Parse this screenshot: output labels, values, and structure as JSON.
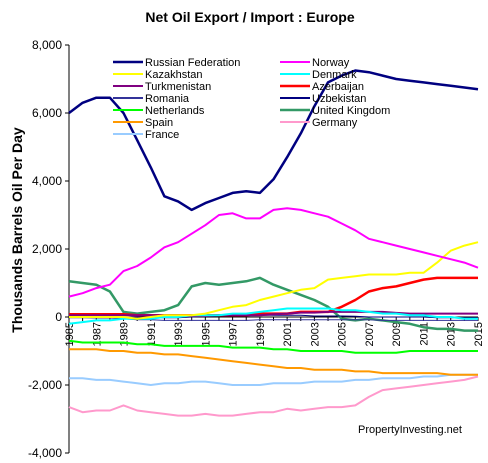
{
  "chart_data": {
    "type": "line",
    "title": "Net Oil Export / Import : Europe",
    "ylabel": "Thousands Barrels Oil Per Day",
    "xlabel": "",
    "ylim": [
      -4000,
      8000
    ],
    "yticks": [
      "8,000",
      "6,000",
      "4,000",
      "2,000",
      "0",
      "-2,000",
      "-4,000"
    ],
    "ytick_values": [
      8000,
      6000,
      4000,
      2000,
      0,
      -2000,
      -4000
    ],
    "x": [
      1985,
      1986,
      1987,
      1988,
      1989,
      1990,
      1991,
      1992,
      1993,
      1994,
      1995,
      1996,
      1997,
      1998,
      1999,
      2000,
      2001,
      2002,
      2003,
      2004,
      2005,
      2006,
      2007,
      2008,
      2009,
      2010,
      2011,
      2012,
      2013,
      2014,
      2015
    ],
    "xticks": [
      "1985",
      "1987",
      "1989",
      "1991",
      "1993",
      "1995",
      "1997",
      "1999",
      "2001",
      "2003",
      "2005",
      "2007",
      "2009",
      "2011",
      "2013",
      "2015"
    ],
    "grid": false,
    "legend_position": "top",
    "annotation": "PropertyInvesting.net",
    "series": [
      {
        "name": "Russian Federation",
        "color": "#000080",
        "width": 2.5,
        "values": [
          6000,
          6300,
          6450,
          6450,
          6000,
          5200,
          4400,
          3550,
          3400,
          3150,
          3350,
          3500,
          3650,
          3700,
          3650,
          4050,
          4700,
          5400,
          6200,
          6900,
          7100,
          7250,
          7200,
          7100,
          7000,
          6950,
          6900,
          6850,
          6800,
          6750,
          6700
        ]
      },
      {
        "name": "Norway",
        "color": "#ff00ff",
        "width": 2,
        "values": [
          600,
          700,
          850,
          950,
          1350,
          1500,
          1750,
          2050,
          2200,
          2450,
          2700,
          3000,
          3050,
          2900,
          2900,
          3150,
          3200,
          3150,
          3050,
          2950,
          2750,
          2550,
          2300,
          2200,
          2100,
          2000,
          1900,
          1800,
          1700,
          1600,
          1450
        ]
      },
      {
        "name": "Kazakhstan",
        "color": "#ffff00",
        "width": 2,
        "values": [
          0,
          0,
          0,
          0,
          0,
          -50,
          0,
          50,
          50,
          50,
          100,
          200,
          300,
          350,
          500,
          600,
          700,
          800,
          850,
          1100,
          1150,
          1200,
          1250,
          1250,
          1250,
          1300,
          1300,
          1600,
          1950,
          2100,
          2200
        ]
      },
      {
        "name": "Denmark",
        "color": "#00ffff",
        "width": 2,
        "values": [
          -200,
          -150,
          -100,
          -100,
          -50,
          -50,
          -50,
          0,
          0,
          50,
          50,
          50,
          100,
          100,
          150,
          200,
          250,
          250,
          250,
          250,
          200,
          200,
          150,
          100,
          100,
          50,
          50,
          0,
          0,
          -50,
          -50
        ]
      },
      {
        "name": "Turkmenistan",
        "color": "#800080",
        "width": 2,
        "values": [
          50,
          50,
          50,
          50,
          50,
          50,
          50,
          50,
          50,
          30,
          30,
          50,
          50,
          50,
          50,
          80,
          100,
          130,
          130,
          150,
          150,
          150,
          150,
          150,
          120,
          100,
          100,
          100,
          100,
          100,
          100
        ]
      },
      {
        "name": "Azerbaijan",
        "color": "#ff0000",
        "width": 2.5,
        "values": [
          80,
          80,
          80,
          80,
          80,
          50,
          50,
          50,
          50,
          50,
          50,
          50,
          50,
          50,
          100,
          100,
          100,
          150,
          150,
          150,
          300,
          500,
          750,
          850,
          900,
          1000,
          1100,
          1150,
          1150,
          1150,
          1150
        ]
      },
      {
        "name": "Romania",
        "color": "#333399",
        "width": 1,
        "values": [
          -20,
          -20,
          -30,
          -30,
          -50,
          -80,
          -80,
          -100,
          -100,
          -100,
          -100,
          -100,
          -100,
          -100,
          -80,
          -80,
          -80,
          -80,
          -80,
          -80,
          -80,
          -80,
          -80,
          -100,
          -100,
          -100,
          -100,
          -100,
          -100,
          -100,
          -100
        ]
      },
      {
        "name": "Uzbekistan",
        "color": "#000080",
        "width": 1,
        "values": [
          0,
          0,
          0,
          0,
          0,
          0,
          -20,
          -20,
          -20,
          0,
          20,
          30,
          50,
          50,
          50,
          50,
          50,
          50,
          30,
          30,
          30,
          20,
          0,
          0,
          0,
          0,
          0,
          -20,
          -20,
          -20,
          -20
        ]
      },
      {
        "name": "Netherlands",
        "color": "#00ff00",
        "width": 2,
        "values": [
          -700,
          -750,
          -750,
          -750,
          -750,
          -800,
          -800,
          -850,
          -850,
          -850,
          -850,
          -850,
          -900,
          -900,
          -900,
          -950,
          -950,
          -1000,
          -1000,
          -1000,
          -1000,
          -1050,
          -1050,
          -1050,
          -1050,
          -1000,
          -1000,
          -1000,
          -1000,
          -1000,
          -1000
        ]
      },
      {
        "name": "United Kingdom",
        "color": "#339966",
        "width": 2.5,
        "values": [
          1050,
          1000,
          950,
          750,
          150,
          100,
          150,
          200,
          350,
          900,
          1000,
          950,
          1000,
          1050,
          1150,
          950,
          800,
          650,
          500,
          300,
          -50,
          -100,
          -50,
          -100,
          -150,
          -200,
          -300,
          -350,
          -350,
          -400,
          -400
        ]
      },
      {
        "name": "Spain",
        "color": "#ff9900",
        "width": 2,
        "values": [
          -950,
          -950,
          -950,
          -1000,
          -1000,
          -1050,
          -1050,
          -1100,
          -1100,
          -1150,
          -1200,
          -1250,
          -1300,
          -1350,
          -1400,
          -1450,
          -1500,
          -1500,
          -1550,
          -1550,
          -1550,
          -1600,
          -1600,
          -1650,
          -1650,
          -1650,
          -1650,
          -1650,
          -1700,
          -1700,
          -1700
        ]
      },
      {
        "name": "Germany",
        "color": "#ff99cc",
        "width": 2,
        "values": [
          -2650,
          -2800,
          -2750,
          -2750,
          -2600,
          -2750,
          -2800,
          -2850,
          -2900,
          -2900,
          -2850,
          -2900,
          -2900,
          -2850,
          -2800,
          -2800,
          -2700,
          -2750,
          -2700,
          -2650,
          -2650,
          -2600,
          -2350,
          -2150,
          -2100,
          -2050,
          -2000,
          -1950,
          -1900,
          -1850,
          -1750
        ]
      },
      {
        "name": "France",
        "color": "#99ccff",
        "width": 2,
        "values": [
          -1800,
          -1800,
          -1850,
          -1850,
          -1900,
          -1950,
          -2000,
          -1950,
          -1950,
          -1900,
          -1900,
          -1950,
          -2000,
          -2000,
          -2000,
          -1950,
          -1950,
          -1950,
          -1900,
          -1900,
          -1900,
          -1850,
          -1850,
          -1800,
          -1800,
          -1800,
          -1750,
          -1750,
          -1700,
          -1700,
          -1700
        ]
      }
    ]
  }
}
